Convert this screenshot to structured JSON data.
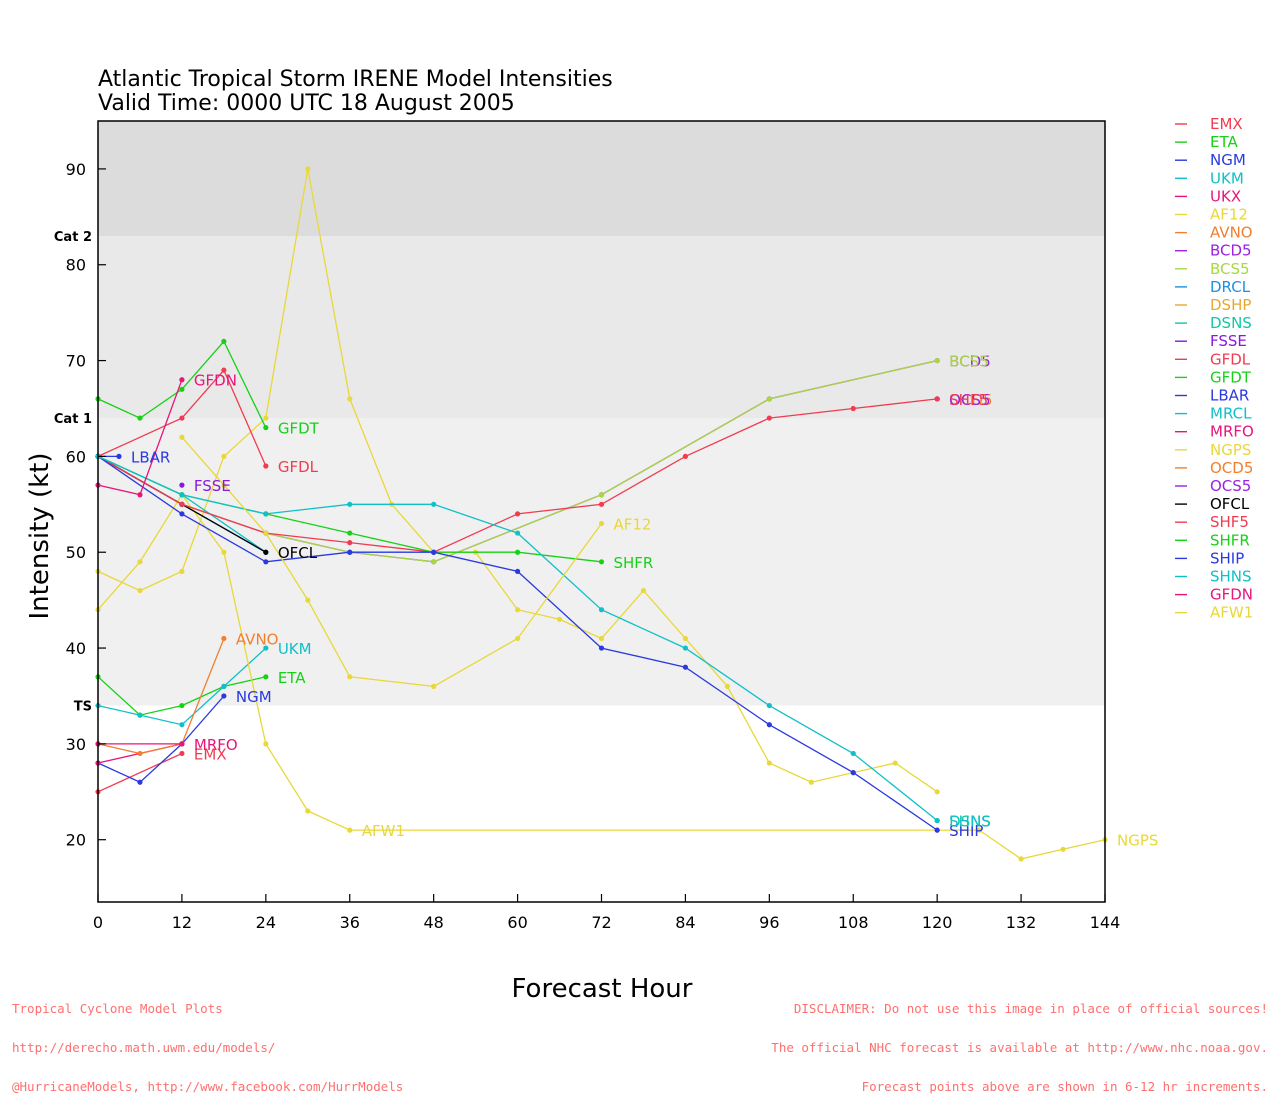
{
  "chart_data": {
    "type": "line",
    "title": "Atlantic Tropical Storm IRENE Model Intensities",
    "subtitle": "Valid Time: 0000 UTC 18 August 2005",
    "xlabel": "Forecast Hour",
    "ylabel": "Intensity (kt)",
    "xlim": [
      0,
      144
    ],
    "ylim": [
      13.5,
      95
    ],
    "x_ticks": [
      0,
      12,
      24,
      36,
      48,
      60,
      72,
      84,
      96,
      108,
      120,
      132,
      144
    ],
    "y_ticks": [
      20,
      30,
      40,
      50,
      60,
      70,
      80,
      90
    ],
    "bands": [
      {
        "from": 34,
        "to": 64,
        "color": "#f0f0f0"
      },
      {
        "from": 64,
        "to": 83,
        "color": "#e9e9e9"
      },
      {
        "from": 83,
        "to": 95,
        "color": "#dcdcdc"
      }
    ],
    "category_labels": [
      {
        "label": "TS",
        "y": 34
      },
      {
        "label": "Cat 1",
        "y": 64
      },
      {
        "label": "Cat 2",
        "y": 83
      }
    ],
    "legend_position": "right",
    "series": [
      {
        "name": "EMX",
        "color": "#f03c50",
        "points": [
          [
            0,
            25
          ],
          [
            12,
            29
          ]
        ],
        "end_label": "EMX"
      },
      {
        "name": "ETA",
        "color": "#17d117",
        "points": [
          [
            0,
            37
          ],
          [
            6,
            33
          ],
          [
            12,
            34
          ],
          [
            18,
            36
          ],
          [
            24,
            37
          ]
        ],
        "end_label": "ETA"
      },
      {
        "name": "NGM",
        "color": "#2a39e0",
        "points": [
          [
            0,
            28
          ],
          [
            6,
            26
          ],
          [
            12,
            30
          ],
          [
            18,
            35
          ]
        ],
        "end_label": "NGM"
      },
      {
        "name": "UKM",
        "color": "#10c0c8",
        "points": [
          [
            0,
            34
          ],
          [
            6,
            33
          ],
          [
            12,
            32
          ],
          [
            18,
            36
          ],
          [
            24,
            40
          ]
        ],
        "end_label": "UKM"
      },
      {
        "name": "UKX",
        "color": "#e8157a",
        "points": [
          [
            0,
            28
          ],
          [
            12,
            30
          ]
        ],
        "end_label": ""
      },
      {
        "name": "AF12",
        "color": "#e8d83a",
        "points": [
          [
            0,
            48
          ],
          [
            6,
            46
          ],
          [
            12,
            48
          ],
          [
            18,
            60
          ],
          [
            24,
            64
          ],
          [
            30,
            90
          ],
          [
            36,
            66
          ],
          [
            42,
            55
          ],
          [
            48,
            50
          ],
          [
            54,
            50
          ],
          [
            60,
            44
          ],
          [
            66,
            43
          ],
          [
            72,
            41
          ],
          [
            78,
            46
          ],
          [
            84,
            41
          ],
          [
            90,
            36
          ],
          [
            96,
            28
          ],
          [
            102,
            26
          ],
          [
            108,
            27
          ],
          [
            114,
            28
          ],
          [
            120,
            25
          ]
        ],
        "end_label": "AF12",
        "label_at": [
          72,
          53
        ]
      },
      {
        "name": "AVNO",
        "color": "#f08030",
        "points": [
          [
            0,
            30
          ],
          [
            6,
            29
          ],
          [
            12,
            30
          ],
          [
            18,
            41
          ]
        ],
        "end_label": "AVNO"
      },
      {
        "name": "BCD5",
        "color": "#9a22e0",
        "points": [
          [
            0,
            60
          ],
          [
            12,
            55
          ],
          [
            24,
            52
          ],
          [
            36,
            50
          ],
          [
            48,
            49
          ],
          [
            72,
            56
          ],
          [
            96,
            66
          ],
          [
            120,
            70
          ]
        ],
        "end_label": "BCD5"
      },
      {
        "name": "BCS5",
        "color": "#a8d840",
        "points": [
          [
            0,
            60
          ],
          [
            12,
            55
          ],
          [
            24,
            52
          ],
          [
            36,
            50
          ],
          [
            48,
            49
          ],
          [
            72,
            56
          ],
          [
            96,
            66
          ],
          [
            120,
            70
          ]
        ],
        "end_label": "BCS5"
      },
      {
        "name": "DRCL",
        "color": "#1e90e0",
        "points": [
          [
            0,
            60
          ],
          [
            12,
            55
          ],
          [
            24,
            50
          ]
        ],
        "end_label": ""
      },
      {
        "name": "DSHP",
        "color": "#e8a830",
        "points": [
          [
            120,
            22
          ]
        ],
        "end_label": ""
      },
      {
        "name": "DSNS",
        "color": "#10c8a8",
        "points": [
          [
            120,
            22
          ]
        ],
        "end_label": "DSNS"
      },
      {
        "name": "FSSE",
        "color": "#8a18e0",
        "points": [
          [
            12,
            57
          ]
        ],
        "end_label": "FSSE"
      },
      {
        "name": "GFDL",
        "color": "#f03c50",
        "points": [
          [
            0,
            60
          ],
          [
            12,
            64
          ],
          [
            18,
            69
          ],
          [
            24,
            59
          ]
        ],
        "end_label": "GFDL"
      },
      {
        "name": "GFDT",
        "color": "#17d117",
        "points": [
          [
            0,
            66
          ],
          [
            6,
            64
          ],
          [
            12,
            67
          ],
          [
            18,
            72
          ],
          [
            24,
            63
          ]
        ],
        "end_label": "GFDT"
      },
      {
        "name": "LBAR",
        "color": "#2a39e0",
        "points": [
          [
            0,
            60
          ],
          [
            3,
            60
          ]
        ],
        "end_label": "LBAR"
      },
      {
        "name": "MRCL",
        "color": "#10c0c8",
        "points": [
          [
            0,
            60
          ],
          [
            12,
            56
          ],
          [
            24,
            50
          ]
        ],
        "end_label": ""
      },
      {
        "name": "MRFO",
        "color": "#e8157a",
        "points": [
          [
            0,
            30
          ],
          [
            12,
            30
          ]
        ],
        "end_label": "MRFO"
      },
      {
        "name": "NGPS",
        "color": "#e8d83a",
        "points": [
          [
            0,
            44
          ],
          [
            6,
            49
          ],
          [
            12,
            56
          ],
          [
            18,
            50
          ],
          [
            24,
            30
          ],
          [
            30,
            23
          ],
          [
            36,
            21
          ],
          [
            120,
            21
          ],
          [
            126,
            21
          ],
          [
            132,
            18
          ],
          [
            138,
            19
          ],
          [
            144,
            20
          ]
        ],
        "end_label": "NGPS"
      },
      {
        "name": "OCD5",
        "color": "#f08030",
        "points": [
          [
            120,
            66
          ]
        ],
        "end_label": "OCD5"
      },
      {
        "name": "OCS5",
        "color": "#9a22e0",
        "points": [
          [
            120,
            66
          ]
        ],
        "end_label": "OCS5"
      },
      {
        "name": "OFCL",
        "color": "#000000",
        "points": [
          [
            0,
            60
          ],
          [
            12,
            55
          ],
          [
            24,
            50
          ]
        ],
        "end_label": "OFCL"
      },
      {
        "name": "SHF5",
        "color": "#f03c50",
        "points": [
          [
            0,
            60
          ],
          [
            12,
            55
          ],
          [
            24,
            52
          ],
          [
            36,
            51
          ],
          [
            48,
            50
          ],
          [
            60,
            54
          ],
          [
            72,
            55
          ],
          [
            84,
            60
          ],
          [
            96,
            64
          ],
          [
            108,
            65
          ],
          [
            120,
            66
          ]
        ],
        "end_label": "SHF5"
      },
      {
        "name": "SHFR",
        "color": "#17d117",
        "points": [
          [
            0,
            60
          ],
          [
            12,
            56
          ],
          [
            24,
            54
          ],
          [
            36,
            52
          ],
          [
            48,
            50
          ],
          [
            60,
            50
          ],
          [
            72,
            49
          ]
        ],
        "end_label": "SHFR"
      },
      {
        "name": "SHIP",
        "color": "#2a39e0",
        "points": [
          [
            0,
            60
          ],
          [
            12,
            54
          ],
          [
            24,
            49
          ],
          [
            36,
            50
          ],
          [
            48,
            50
          ],
          [
            60,
            48
          ],
          [
            72,
            40
          ],
          [
            84,
            38
          ],
          [
            96,
            32
          ],
          [
            108,
            27
          ],
          [
            120,
            21
          ]
        ],
        "end_label": "SHIP"
      },
      {
        "name": "SHNS",
        "color": "#10c0c8",
        "points": [
          [
            0,
            60
          ],
          [
            12,
            56
          ],
          [
            24,
            54
          ],
          [
            36,
            55
          ],
          [
            48,
            55
          ],
          [
            60,
            52
          ],
          [
            72,
            44
          ],
          [
            84,
            40
          ],
          [
            96,
            34
          ],
          [
            108,
            29
          ],
          [
            120,
            22
          ]
        ],
        "end_label": "SHNS"
      },
      {
        "name": "GFDN",
        "color": "#e8157a",
        "points": [
          [
            0,
            57
          ],
          [
            6,
            56
          ],
          [
            12,
            68
          ]
        ],
        "end_label": "GFDN"
      },
      {
        "name": "AFW1",
        "color": "#e8d83a",
        "points": [
          [
            12,
            62
          ],
          [
            18,
            57
          ],
          [
            24,
            52
          ],
          [
            30,
            45
          ],
          [
            36,
            37
          ],
          [
            48,
            36
          ],
          [
            60,
            41
          ],
          [
            72,
            53
          ]
        ],
        "end_label": "AFW1",
        "label_at": [
          36,
          21
        ]
      }
    ]
  },
  "footer": {
    "left_lines": [
      "Tropical Cyclone Model Plots",
      "http://derecho.math.uwm.edu/models/",
      "@HurricaneModels, http://www.facebook.com/HurrModels"
    ],
    "right_lines": [
      "DISCLAIMER: Do not use this image in place of official sources!",
      "The official NHC forecast is available at http://www.nhc.noaa.gov.",
      "Forecast points above are shown in 6-12 hr increments."
    ]
  }
}
